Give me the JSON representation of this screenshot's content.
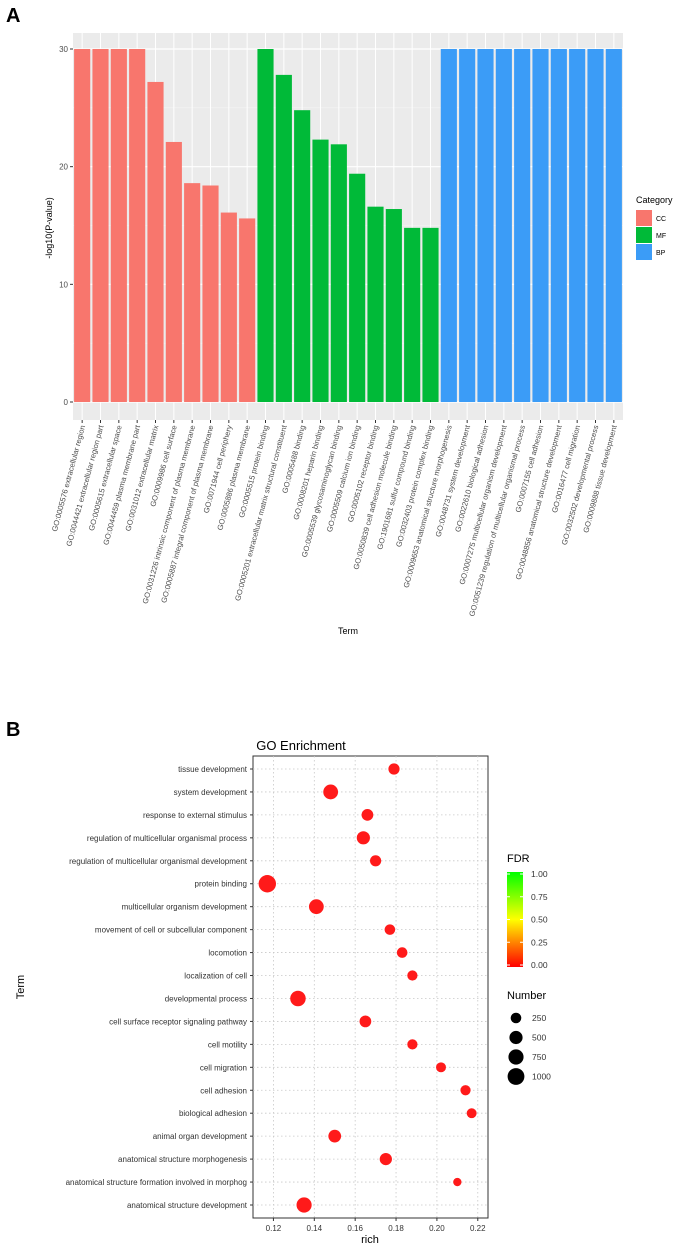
{
  "panel_labels": [
    "A",
    "B"
  ],
  "chart_data": [
    {
      "type": "bar",
      "panel": "A",
      "title": "",
      "xlabel": "Term",
      "ylabel": "-log10(P-value)",
      "ylim": [
        0,
        30
      ],
      "yticks": [
        0,
        10,
        20,
        30
      ],
      "grid": true,
      "legend_title": "Category",
      "legend_position": "right",
      "colors": {
        "CC": "#f8766d",
        "MF": "#00ba38",
        "BP": "#3b9cf7"
      },
      "categories": [
        "GO:0005576 extracellular region",
        "GO:0044421 extracellular region part",
        "GO:0005615 extracellular space",
        "GO:0044459 plasma membrane part",
        "GO:0031012 extracellular matrix",
        "GO:0009986 cell surface",
        "GO:0031226 intrinsic component of plasma membrane",
        "GO:0005887 integral component of plasma membrane",
        "GO:0071944 cell periphery",
        "GO:0005886 plasma membrane",
        "GO:0005515 protein binding",
        "GO:0005201 extracellular matrix structural constituent",
        "GO:0005488 binding",
        "GO:0008201 heparin binding",
        "GO:0005539 glycosaminoglycan binding",
        "GO:0005509 calcium ion binding",
        "GO:0005102 receptor binding",
        "GO:0050839 cell adhesion molecule binding",
        "GO:1901681 sulfur compound binding",
        "GO:0032403 protein complex binding",
        "GO:0009653 anatomical structure morphogenesis",
        "GO:0048731 system development",
        "GO:0022610 biological adhesion",
        "GO:0007275 multicellular organism development",
        "GO:0051239 regulation of multicellular organismal process",
        "GO:0007155 cell adhesion",
        "GO:0048856 anatomical structure development",
        "GO:0016477 cell migration",
        "GO:0032502 developmental process",
        "GO:0009888 tissue development"
      ],
      "values": [
        30,
        30,
        30,
        30,
        27.2,
        22.1,
        18.6,
        18.4,
        16.1,
        15.6,
        30,
        27.8,
        24.8,
        22.3,
        21.9,
        19.4,
        16.6,
        16.4,
        14.8,
        14.8,
        30,
        30,
        30,
        30,
        30,
        30,
        30,
        30,
        30,
        30
      ],
      "category_of_bar": [
        "CC",
        "CC",
        "CC",
        "CC",
        "CC",
        "CC",
        "CC",
        "CC",
        "CC",
        "CC",
        "MF",
        "MF",
        "MF",
        "MF",
        "MF",
        "MF",
        "MF",
        "MF",
        "MF",
        "MF",
        "BP",
        "BP",
        "BP",
        "BP",
        "BP",
        "BP",
        "BP",
        "BP",
        "BP",
        "BP"
      ],
      "legend": [
        "CC",
        "MF",
        "BP"
      ]
    },
    {
      "type": "scatter",
      "panel": "B",
      "title": "GO Enrichment",
      "xlabel": "rich",
      "ylabel": "Term",
      "xlim": [
        0.11,
        0.225
      ],
      "xticks": [
        0.12,
        0.14,
        0.16,
        0.18,
        0.2,
        0.22
      ],
      "xtick_labels": [
        "0.12",
        "0.14",
        "0.16",
        "0.18",
        "0.20",
        "0.22"
      ],
      "grid": true,
      "point_color": "#ff1a1a",
      "terms": [
        "tissue development",
        "system development",
        "response to external stimulus",
        "regulation of multicellular organismal process",
        "regulation of multicellular organismal development",
        "protein binding",
        "multicellular organism development",
        "movement of cell or subcellular component",
        "locomotion",
        "localization of cell",
        "developmental process",
        "cell surface receptor signaling pathway",
        "cell motility",
        "cell migration",
        "cell adhesion",
        "biological adhesion",
        "animal organ development",
        "anatomical structure morphogenesis",
        "anatomical structure formation involved in morphog",
        "anatomical structure development"
      ],
      "rich": [
        0.179,
        0.148,
        0.166,
        0.164,
        0.17,
        0.117,
        0.141,
        0.177,
        0.183,
        0.188,
        0.132,
        0.165,
        0.188,
        0.202,
        0.214,
        0.217,
        0.15,
        0.175,
        0.21,
        0.135
      ],
      "number": [
        300,
        700,
        350,
        500,
        300,
        1100,
        700,
        250,
        250,
        220,
        800,
        350,
        220,
        200,
        220,
        200,
        450,
        400,
        100,
        750
      ],
      "fdr": [
        0,
        0,
        0,
        0,
        0,
        0,
        0,
        0,
        0,
        0,
        0,
        0,
        0,
        0,
        0,
        0,
        0,
        0,
        0,
        0
      ],
      "fdr_legend": {
        "title": "FDR",
        "ticks": [
          "1.00",
          "0.75",
          "0.50",
          "0.25",
          "0.00"
        ],
        "colors": [
          "#00ff00",
          "#ffff00",
          "#ff0000"
        ]
      },
      "size_legend": {
        "title": "Number",
        "values": [
          250,
          500,
          750,
          1000
        ],
        "labels": [
          "250",
          "500",
          "750",
          "1000"
        ]
      }
    }
  ]
}
